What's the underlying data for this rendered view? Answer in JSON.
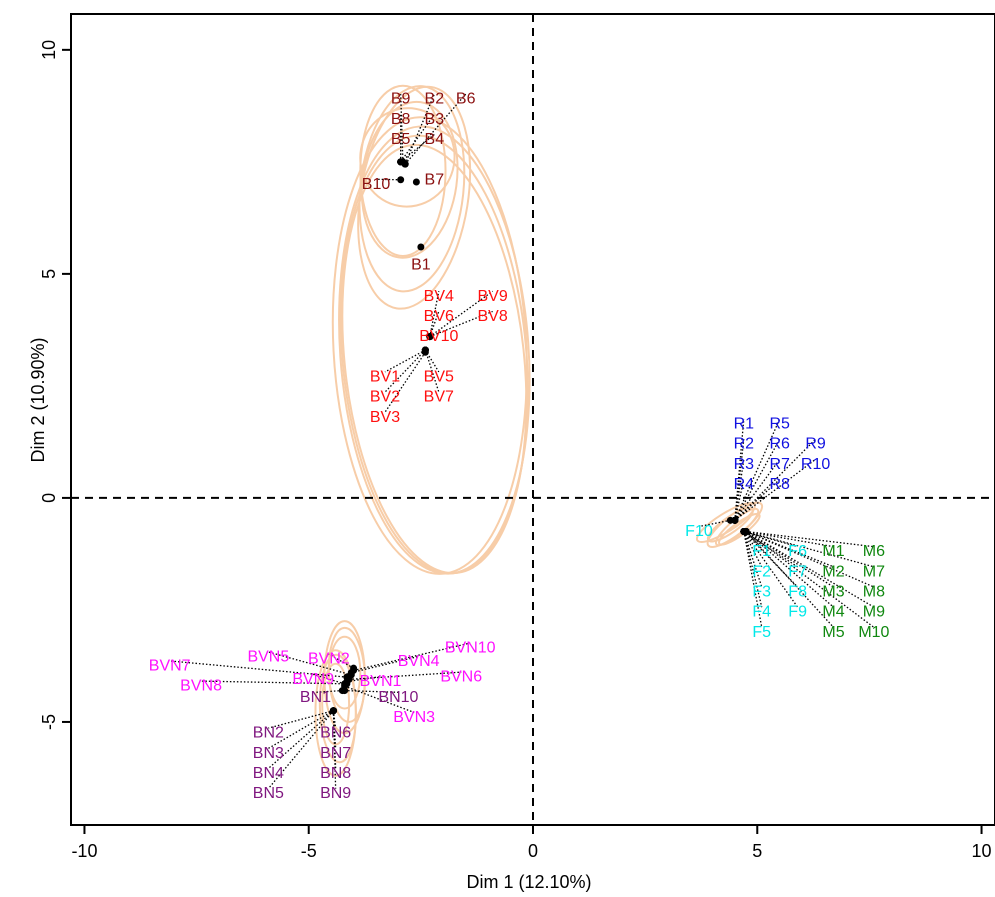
{
  "chart_data": {
    "type": "scatter",
    "xlabel": "Dim 1 (12.10%)",
    "ylabel": "Dim 2 (10.90%)",
    "xlim": [
      -10.3,
      10.3
    ],
    "ylim": [
      -7.3,
      10.8
    ],
    "xticks": [
      -10,
      -5,
      0,
      5,
      10
    ],
    "yticks": [
      -5,
      0,
      5,
      10
    ],
    "xtick_labels": [
      "-10",
      "-5",
      "0",
      "5",
      "10"
    ],
    "ytick_labels": [
      "-5",
      "0",
      "5",
      "10"
    ],
    "reference_lines": {
      "x": 0,
      "y": 0,
      "style": "dashed"
    },
    "grid": false,
    "ellipse_color": "#f7cda8",
    "point_color": "#000000",
    "groups": [
      {
        "name": "B",
        "color": "#8b1010",
        "points": [
          {
            "label": "B1",
            "x": -2.5,
            "y": 5.6,
            "lx": -2.5,
            "ly": 5.2
          },
          {
            "label": "B2",
            "x": -2.85,
            "y": 7.45,
            "lx": -2.2,
            "ly": 8.9
          },
          {
            "label": "B3",
            "x": -2.95,
            "y": 7.5,
            "lx": -2.2,
            "ly": 8.45
          },
          {
            "label": "B4",
            "x": -2.95,
            "y": 7.5,
            "lx": -2.2,
            "ly": 8.0
          },
          {
            "label": "B5",
            "x": -2.95,
            "y": 7.5,
            "lx": -2.95,
            "ly": 8.0
          },
          {
            "label": "B6",
            "x": -2.85,
            "y": 7.45,
            "lx": -1.5,
            "ly": 8.9
          },
          {
            "label": "B7",
            "x": -2.6,
            "y": 7.05,
            "lx": -2.2,
            "ly": 7.1
          },
          {
            "label": "B8",
            "x": -2.95,
            "y": 7.5,
            "lx": -2.95,
            "ly": 8.45
          },
          {
            "label": "B9",
            "x": -2.9,
            "y": 7.5,
            "lx": -2.95,
            "ly": 8.9
          },
          {
            "label": "B10",
            "x": -2.95,
            "y": 7.1,
            "lx": -3.5,
            "ly": 7.0
          }
        ],
        "ellipses": [
          {
            "cx": -2.8,
            "cy": 7.6,
            "rx": 1.05,
            "ry": 1.1,
            "angle": -10
          },
          {
            "cx": -2.75,
            "cy": 7.1,
            "rx": 1.05,
            "ry": 1.75,
            "angle": -8
          },
          {
            "cx": -2.7,
            "cy": 6.9,
            "rx": 1.15,
            "ry": 2.3,
            "angle": -6
          },
          {
            "cx": -2.65,
            "cy": 6.7,
            "rx": 1.2,
            "ry": 2.5,
            "angle": -9
          },
          {
            "cx": -2.9,
            "cy": 7.3,
            "rx": 0.95,
            "ry": 1.9,
            "angle": 0
          }
        ]
      },
      {
        "name": "BV",
        "color": "#ff1010",
        "points": [
          {
            "label": "BV1",
            "x": -2.4,
            "y": 3.3,
            "lx": -3.3,
            "ly": 2.7
          },
          {
            "label": "BV2",
            "x": -2.4,
            "y": 3.3,
            "lx": -3.3,
            "ly": 2.25
          },
          {
            "label": "BV3",
            "x": -2.4,
            "y": 3.25,
            "lx": -3.3,
            "ly": 1.8
          },
          {
            "label": "BV4",
            "x": -2.3,
            "y": 3.6,
            "lx": -2.1,
            "ly": 4.5
          },
          {
            "label": "BV5",
            "x": -2.4,
            "y": 3.3,
            "lx": -2.1,
            "ly": 2.7
          },
          {
            "label": "BV6",
            "x": -2.3,
            "y": 3.6,
            "lx": -2.1,
            "ly": 4.05
          },
          {
            "label": "BV7",
            "x": -2.4,
            "y": 3.3,
            "lx": -2.1,
            "ly": 2.25
          },
          {
            "label": "BV8",
            "x": -2.3,
            "y": 3.6,
            "lx": -0.9,
            "ly": 4.05
          },
          {
            "label": "BV9",
            "x": -2.3,
            "y": 3.6,
            "lx": -0.9,
            "ly": 4.5
          },
          {
            "label": "BV10",
            "x": -2.3,
            "y": 3.6,
            "lx": -2.1,
            "ly": 3.6
          }
        ],
        "ellipses": [
          {
            "cx": -2.2,
            "cy": 3.3,
            "rx": 2.1,
            "ry": 5.0,
            "angle": 4
          },
          {
            "cx": -2.2,
            "cy": 3.1,
            "rx": 2.0,
            "ry": 4.8,
            "angle": 6
          },
          {
            "cx": -2.3,
            "cy": 3.4,
            "rx": 2.15,
            "ry": 5.1,
            "angle": 3
          },
          {
            "cx": -2.2,
            "cy": 3.2,
            "rx": 2.05,
            "ry": 4.9,
            "angle": 5
          }
        ]
      },
      {
        "name": "R",
        "color": "#1010e0",
        "points": [
          {
            "label": "R1",
            "x": 4.5,
            "y": -0.5,
            "lx": 4.7,
            "ly": 1.65
          },
          {
            "label": "R2",
            "x": 4.5,
            "y": -0.5,
            "lx": 4.7,
            "ly": 1.2
          },
          {
            "label": "R3",
            "x": 4.5,
            "y": -0.5,
            "lx": 4.7,
            "ly": 0.75
          },
          {
            "label": "R4",
            "x": 4.5,
            "y": -0.5,
            "lx": 4.7,
            "ly": 0.3
          },
          {
            "label": "R5",
            "x": 4.5,
            "y": -0.5,
            "lx": 5.5,
            "ly": 1.65
          },
          {
            "label": "R6",
            "x": 4.5,
            "y": -0.5,
            "lx": 5.5,
            "ly": 1.2
          },
          {
            "label": "R7",
            "x": 4.5,
            "y": -0.5,
            "lx": 5.5,
            "ly": 0.75
          },
          {
            "label": "R8",
            "x": 4.5,
            "y": -0.5,
            "lx": 5.5,
            "ly": 0.3
          },
          {
            "label": "R9",
            "x": 4.5,
            "y": -0.5,
            "lx": 6.3,
            "ly": 1.2
          },
          {
            "label": "R10",
            "x": 4.5,
            "y": -0.5,
            "lx": 6.3,
            "ly": 0.75
          }
        ],
        "ellipses": [
          {
            "cx": 4.3,
            "cy": -0.55,
            "rx": 0.75,
            "ry": 0.2,
            "angle": 32
          },
          {
            "cx": 4.4,
            "cy": -0.6,
            "rx": 0.6,
            "ry": 0.17,
            "angle": 35
          }
        ]
      },
      {
        "name": "F",
        "color": "#00e8e8",
        "points": [
          {
            "label": "F1",
            "x": 4.7,
            "y": -0.75,
            "lx": 5.1,
            "ly": -1.2
          },
          {
            "label": "F2",
            "x": 4.7,
            "y": -0.75,
            "lx": 5.1,
            "ly": -1.65
          },
          {
            "label": "F3",
            "x": 4.7,
            "y": -0.75,
            "lx": 5.1,
            "ly": -2.1
          },
          {
            "label": "F4",
            "x": 4.7,
            "y": -0.75,
            "lx": 5.1,
            "ly": -2.55
          },
          {
            "label": "F5",
            "x": 4.7,
            "y": -0.75,
            "lx": 5.1,
            "ly": -3.0
          },
          {
            "label": "F6",
            "x": 4.7,
            "y": -0.75,
            "lx": 5.9,
            "ly": -1.2
          },
          {
            "label": "F7",
            "x": 4.7,
            "y": -0.75,
            "lx": 5.9,
            "ly": -1.65
          },
          {
            "label": "F8",
            "x": 4.7,
            "y": -0.75,
            "lx": 5.9,
            "ly": -2.1
          },
          {
            "label": "F9",
            "x": 4.7,
            "y": -0.75,
            "lx": 5.9,
            "ly": -2.55
          },
          {
            "label": "F10",
            "x": 4.4,
            "y": -0.5,
            "lx": 3.7,
            "ly": -0.75
          }
        ],
        "ellipses": [
          {
            "cx": 4.5,
            "cy": -0.6,
            "rx": 0.75,
            "ry": 0.22,
            "angle": 38
          },
          {
            "cx": 4.55,
            "cy": -0.65,
            "rx": 0.6,
            "ry": 0.16,
            "angle": 40
          }
        ]
      },
      {
        "name": "M",
        "color": "#108810",
        "points": [
          {
            "label": "M1",
            "x": 4.75,
            "y": -0.75,
            "lx": 6.7,
            "ly": -1.2
          },
          {
            "label": "M2",
            "x": 4.75,
            "y": -0.75,
            "lx": 6.7,
            "ly": -1.65
          },
          {
            "label": "M3",
            "x": 4.75,
            "y": -0.75,
            "lx": 6.7,
            "ly": -2.1
          },
          {
            "label": "M4",
            "x": 4.75,
            "y": -0.75,
            "lx": 6.7,
            "ly": -2.55
          },
          {
            "label": "M5",
            "x": 4.75,
            "y": -0.75,
            "lx": 6.7,
            "ly": -3.0
          },
          {
            "label": "M6",
            "x": 4.75,
            "y": -0.75,
            "lx": 7.6,
            "ly": -1.2
          },
          {
            "label": "M7",
            "x": 4.75,
            "y": -0.75,
            "lx": 7.6,
            "ly": -1.65
          },
          {
            "label": "M8",
            "x": 4.75,
            "y": -0.75,
            "lx": 7.6,
            "ly": -2.1
          },
          {
            "label": "M9",
            "x": 4.75,
            "y": -0.75,
            "lx": 7.6,
            "ly": -2.55
          },
          {
            "label": "M10",
            "x": 4.75,
            "y": -0.75,
            "lx": 7.6,
            "ly": -3.0
          }
        ],
        "ellipses": [
          {
            "cx": 4.6,
            "cy": -0.7,
            "rx": 0.55,
            "ry": 0.14,
            "angle": 36
          }
        ]
      },
      {
        "name": "BVN",
        "color": "#ff10ff",
        "points": [
          {
            "label": "BVN1",
            "x": -4.15,
            "y": -4.1,
            "lx": -3.4,
            "ly": -4.1
          },
          {
            "label": "BVN2",
            "x": -4.0,
            "y": -3.8,
            "lx": -4.55,
            "ly": -3.6
          },
          {
            "label": "BVN3",
            "x": -4.2,
            "y": -4.2,
            "lx": -2.65,
            "ly": -4.9
          },
          {
            "label": "BVN4",
            "x": -4.05,
            "y": -3.9,
            "lx": -2.55,
            "ly": -3.65
          },
          {
            "label": "BVN5",
            "x": -4.05,
            "y": -3.95,
            "lx": -5.9,
            "ly": -3.55
          },
          {
            "label": "BVN6",
            "x": -4.1,
            "y": -4.05,
            "lx": -1.6,
            "ly": -4.0
          },
          {
            "label": "BVN7",
            "x": -4.15,
            "y": -4.0,
            "lx": -8.1,
            "ly": -3.75
          },
          {
            "label": "BVN8",
            "x": -4.15,
            "y": -4.15,
            "lx": -7.4,
            "ly": -4.2
          },
          {
            "label": "BVN9",
            "x": -4.2,
            "y": -4.15,
            "lx": -4.9,
            "ly": -4.05
          },
          {
            "label": "BVN10",
            "x": -4.0,
            "y": -3.85,
            "lx": -1.4,
            "ly": -3.35
          }
        ],
        "ellipses": [
          {
            "cx": -4.2,
            "cy": -4.0,
            "rx": 0.45,
            "ry": 1.25,
            "angle": 0
          },
          {
            "cx": -4.15,
            "cy": -3.95,
            "rx": 0.4,
            "ry": 1.05,
            "angle": 3
          },
          {
            "cx": -4.2,
            "cy": -3.9,
            "rx": 0.35,
            "ry": 0.8,
            "angle": 0
          }
        ]
      },
      {
        "name": "BN",
        "color": "#801880",
        "points": [
          {
            "label": "BN1",
            "x": -4.25,
            "y": -4.3,
            "lx": -4.85,
            "ly": -4.45
          },
          {
            "label": "BN2",
            "x": -4.45,
            "y": -4.75,
            "lx": -5.9,
            "ly": -5.25
          },
          {
            "label": "BN3",
            "x": -4.45,
            "y": -4.75,
            "lx": -5.9,
            "ly": -5.7
          },
          {
            "label": "BN4",
            "x": -4.45,
            "y": -4.75,
            "lx": -5.9,
            "ly": -6.15
          },
          {
            "label": "BN5",
            "x": -4.45,
            "y": -4.75,
            "lx": -5.9,
            "ly": -6.6
          },
          {
            "label": "BN6",
            "x": -4.45,
            "y": -4.75,
            "lx": -4.4,
            "ly": -5.25
          },
          {
            "label": "BN7",
            "x": -4.45,
            "y": -4.75,
            "lx": -4.4,
            "ly": -5.7
          },
          {
            "label": "BN8",
            "x": -4.45,
            "y": -4.75,
            "lx": -4.4,
            "ly": -6.15
          },
          {
            "label": "BN9",
            "x": -4.45,
            "y": -4.75,
            "lx": -4.4,
            "ly": -6.6
          },
          {
            "label": "BN10",
            "x": -4.2,
            "y": -4.3,
            "lx": -3.0,
            "ly": -4.45
          }
        ],
        "ellipses": [
          {
            "cx": -4.4,
            "cy": -4.8,
            "rx": 0.45,
            "ry": 1.4,
            "angle": 0
          },
          {
            "cx": -4.35,
            "cy": -4.7,
            "rx": 0.4,
            "ry": 1.2,
            "angle": 2
          },
          {
            "cx": -4.4,
            "cy": -4.6,
            "rx": 0.3,
            "ry": 0.9,
            "angle": 0
          }
        ]
      }
    ]
  }
}
